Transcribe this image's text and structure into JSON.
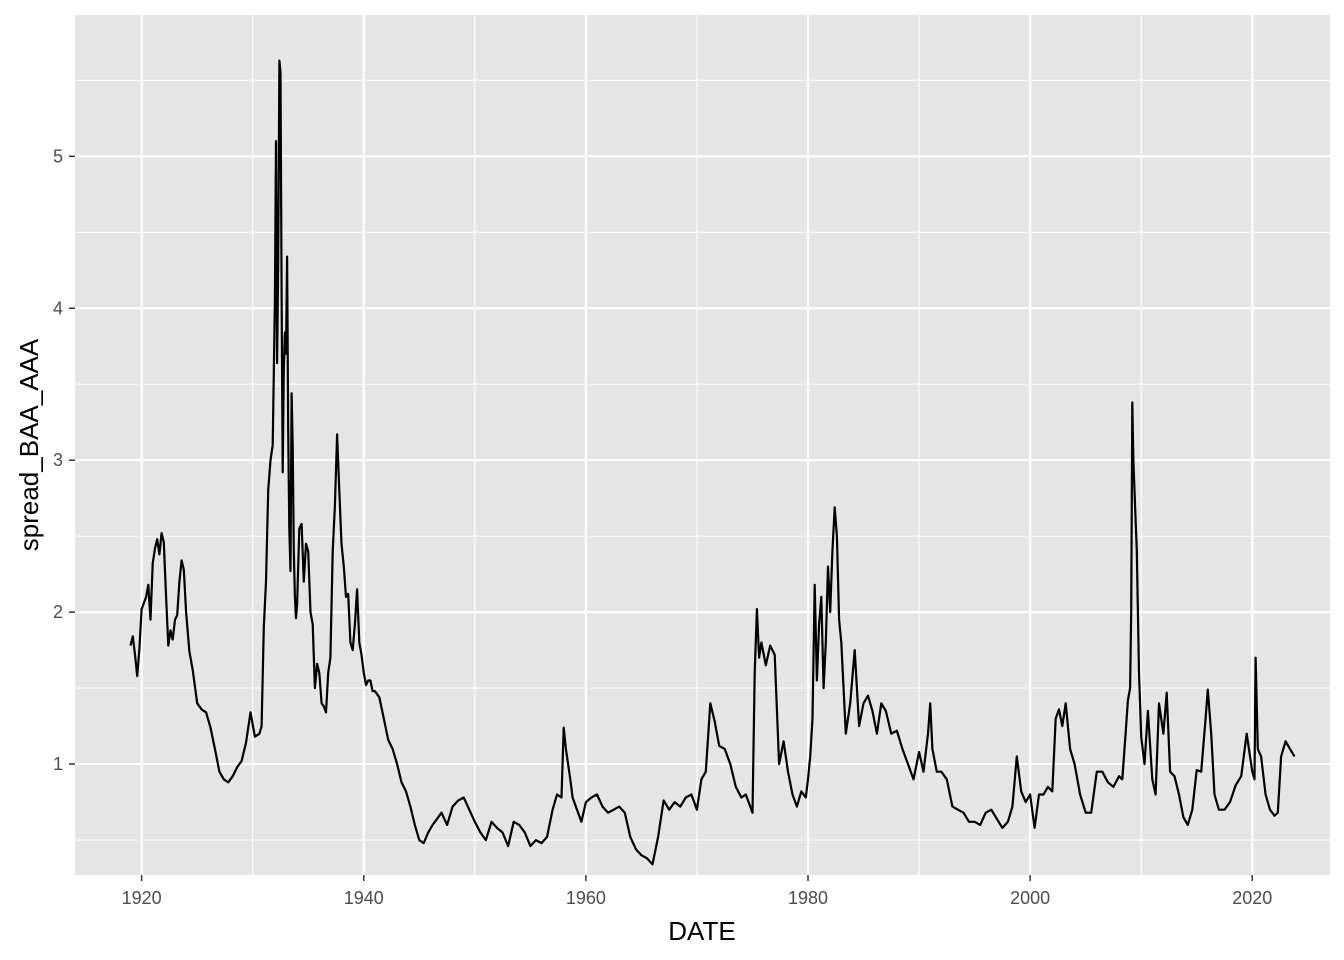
{
  "chart_data": {
    "type": "line",
    "title": "",
    "xlabel": "DATE",
    "ylabel": "spread_BAA_AAA",
    "xlim": [
      1914,
      2027
    ],
    "ylim": [
      0.27,
      5.93
    ],
    "x_ticks": [
      1920,
      1940,
      1960,
      1980,
      2000,
      2020
    ],
    "y_ticks": [
      1,
      2,
      3,
      4,
      5
    ],
    "grid": true,
    "legend": "none",
    "colors": {
      "panel": "#e5e5e5",
      "grid": "#ffffff",
      "line": "#000000",
      "tick_text": "#4d4d4d"
    },
    "series": [
      {
        "x": [
          1919.0,
          1919.2,
          1919.4,
          1919.6,
          1919.8,
          1920.0,
          1920.2,
          1920.4,
          1920.6,
          1920.8,
          1921.0,
          1921.2,
          1921.4,
          1921.6,
          1921.8,
          1922.0,
          1922.2,
          1922.4,
          1922.6,
          1922.8,
          1923.0,
          1923.2,
          1923.4,
          1923.6,
          1923.8,
          1924.0,
          1924.3,
          1924.6,
          1925.0,
          1925.4,
          1925.8,
          1926.2,
          1926.6,
          1927.0,
          1927.4,
          1927.8,
          1928.2,
          1928.6,
          1929.0,
          1929.4,
          1929.8,
          1930.2,
          1930.6,
          1930.8,
          1931.0,
          1931.2,
          1931.4,
          1931.6,
          1931.8,
          1932.0,
          1932.1,
          1932.2,
          1932.3,
          1932.4,
          1932.5,
          1932.6,
          1932.7,
          1932.8,
          1932.9,
          1933.0,
          1933.1,
          1933.2,
          1933.3,
          1933.4,
          1933.5,
          1933.6,
          1933.7,
          1933.8,
          1933.9,
          1934.0,
          1934.2,
          1934.4,
          1934.6,
          1934.8,
          1935.0,
          1935.2,
          1935.4,
          1935.6,
          1935.8,
          1936.0,
          1936.2,
          1936.4,
          1936.6,
          1936.8,
          1937.0,
          1937.2,
          1937.4,
          1937.6,
          1937.8,
          1938.0,
          1938.2,
          1938.4,
          1938.6,
          1938.8,
          1939.0,
          1939.2,
          1939.4,
          1939.6,
          1939.8,
          1940.0,
          1940.2,
          1940.4,
          1940.6,
          1940.8,
          1941.0,
          1941.4,
          1941.8,
          1942.2,
          1942.6,
          1943.0,
          1943.4,
          1943.8,
          1944.2,
          1944.6,
          1945.0,
          1945.4,
          1945.8,
          1946.2,
          1946.6,
          1947.0,
          1947.5,
          1948.0,
          1948.5,
          1949.0,
          1949.5,
          1950.0,
          1950.5,
          1951.0,
          1951.5,
          1952.0,
          1952.5,
          1953.0,
          1953.5,
          1954.0,
          1954.5,
          1955.0,
          1955.5,
          1956.0,
          1956.5,
          1957.0,
          1957.4,
          1957.8,
          1958.0,
          1958.2,
          1958.4,
          1958.6,
          1958.8,
          1959.2,
          1959.6,
          1960.0,
          1960.5,
          1961.0,
          1961.5,
          1962.0,
          1962.5,
          1963.0,
          1963.5,
          1964.0,
          1964.5,
          1965.0,
          1965.5,
          1966.0,
          1966.5,
          1967.0,
          1967.5,
          1968.0,
          1968.5,
          1969.0,
          1969.5,
          1970.0,
          1970.4,
          1970.8,
          1971.2,
          1971.6,
          1972.0,
          1972.5,
          1973.0,
          1973.5,
          1974.0,
          1974.4,
          1974.8,
          1975.0,
          1975.2,
          1975.4,
          1975.6,
          1975.8,
          1976.2,
          1976.6,
          1977.0,
          1977.4,
          1977.8,
          1978.2,
          1978.6,
          1979.0,
          1979.4,
          1979.8,
          1980.0,
          1980.2,
          1980.4,
          1980.6,
          1980.8,
          1981.0,
          1981.2,
          1981.4,
          1981.6,
          1981.8,
          1982.0,
          1982.2,
          1982.4,
          1982.6,
          1982.8,
          1983.0,
          1983.4,
          1983.8,
          1984.2,
          1984.6,
          1985.0,
          1985.4,
          1985.8,
          1986.2,
          1986.6,
          1987.0,
          1987.5,
          1988.0,
          1988.5,
          1989.0,
          1989.5,
          1990.0,
          1990.4,
          1990.8,
          1991.0,
          1991.2,
          1991.6,
          1992.0,
          1992.5,
          1993.0,
          1993.5,
          1994.0,
          1994.5,
          1995.0,
          1995.5,
          1996.0,
          1996.5,
          1997.0,
          1997.5,
          1998.0,
          1998.4,
          1998.8,
          1999.2,
          1999.6,
          2000.0,
          2000.4,
          2000.8,
          2001.2,
          2001.6,
          2002.0,
          2002.3,
          2002.6,
          2002.9,
          2003.2,
          2003.6,
          2004.0,
          2004.5,
          2005.0,
          2005.5,
          2006.0,
          2006.5,
          2007.0,
          2007.5,
          2008.0,
          2008.3,
          2008.6,
          2008.8,
          2009.0,
          2009.1,
          2009.2,
          2009.3,
          2009.4,
          2009.6,
          2009.8,
          2010.0,
          2010.3,
          2010.6,
          2011.0,
          2011.3,
          2011.6,
          2012.0,
          2012.3,
          2012.6,
          2013.0,
          2013.4,
          2013.8,
          2014.2,
          2014.6,
          2015.0,
          2015.4,
          2015.8,
          2016.0,
          2016.3,
          2016.6,
          2017.0,
          2017.5,
          2018.0,
          2018.5,
          2019.0,
          2019.5,
          2020.0,
          2020.2,
          2020.3,
          2020.5,
          2020.8,
          2021.2,
          2021.6,
          2022.0,
          2022.3,
          2022.6,
          2023.0,
          2023.4,
          2023.8
        ],
        "y": [
          1.78,
          1.84,
          1.72,
          1.58,
          1.76,
          2.02,
          2.06,
          2.1,
          2.18,
          1.95,
          2.32,
          2.42,
          2.48,
          2.38,
          2.52,
          2.46,
          2.1,
          1.78,
          1.88,
          1.82,
          1.95,
          1.98,
          2.2,
          2.34,
          2.28,
          2.0,
          1.74,
          1.62,
          1.4,
          1.36,
          1.34,
          1.24,
          1.1,
          0.95,
          0.9,
          0.88,
          0.92,
          0.98,
          1.02,
          1.14,
          1.34,
          1.18,
          1.2,
          1.25,
          1.9,
          2.2,
          2.8,
          3.0,
          3.1,
          4.05,
          5.1,
          3.64,
          4.3,
          5.63,
          5.55,
          4.1,
          2.92,
          3.6,
          3.84,
          3.7,
          4.34,
          3.2,
          2.55,
          2.27,
          3.44,
          3.1,
          2.4,
          2.1,
          1.96,
          2.05,
          2.55,
          2.58,
          2.2,
          2.45,
          2.4,
          2.0,
          1.92,
          1.5,
          1.66,
          1.6,
          1.4,
          1.38,
          1.34,
          1.6,
          1.7,
          2.4,
          2.7,
          3.17,
          2.8,
          2.45,
          2.3,
          2.1,
          2.12,
          1.8,
          1.75,
          1.92,
          2.15,
          1.8,
          1.72,
          1.6,
          1.52,
          1.55,
          1.55,
          1.48,
          1.48,
          1.44,
          1.3,
          1.16,
          1.1,
          1.0,
          0.88,
          0.82,
          0.72,
          0.6,
          0.5,
          0.48,
          0.55,
          0.6,
          0.64,
          0.68,
          0.6,
          0.72,
          0.76,
          0.78,
          0.7,
          0.62,
          0.55,
          0.5,
          0.62,
          0.58,
          0.55,
          0.46,
          0.62,
          0.6,
          0.55,
          0.46,
          0.5,
          0.48,
          0.52,
          0.7,
          0.8,
          0.78,
          1.24,
          1.1,
          1.0,
          0.9,
          0.78,
          0.7,
          0.62,
          0.75,
          0.78,
          0.8,
          0.72,
          0.68,
          0.7,
          0.72,
          0.68,
          0.52,
          0.44,
          0.4,
          0.38,
          0.34,
          0.52,
          0.76,
          0.7,
          0.75,
          0.72,
          0.78,
          0.8,
          0.7,
          0.9,
          0.95,
          1.4,
          1.28,
          1.12,
          1.1,
          1.0,
          0.85,
          0.78,
          0.8,
          0.72,
          0.68,
          1.6,
          2.02,
          1.7,
          1.8,
          1.65,
          1.78,
          1.72,
          1.0,
          1.15,
          0.95,
          0.8,
          0.72,
          0.82,
          0.78,
          0.9,
          1.05,
          1.3,
          2.18,
          1.55,
          1.92,
          2.1,
          1.5,
          1.8,
          2.3,
          2.0,
          2.4,
          2.69,
          2.5,
          1.95,
          1.8,
          1.2,
          1.4,
          1.75,
          1.25,
          1.4,
          1.45,
          1.35,
          1.2,
          1.4,
          1.35,
          1.2,
          1.22,
          1.1,
          1.0,
          0.9,
          1.08,
          0.95,
          1.2,
          1.4,
          1.1,
          0.95,
          0.95,
          0.9,
          0.72,
          0.7,
          0.68,
          0.62,
          0.62,
          0.6,
          0.68,
          0.7,
          0.64,
          0.58,
          0.62,
          0.72,
          1.05,
          0.82,
          0.75,
          0.8,
          0.58,
          0.8,
          0.8,
          0.85,
          0.82,
          1.3,
          1.36,
          1.25,
          1.4,
          1.1,
          1.0,
          0.8,
          0.68,
          0.68,
          0.95,
          0.95,
          0.88,
          0.85,
          0.92,
          0.9,
          1.2,
          1.42,
          1.5,
          2.0,
          3.38,
          3.0,
          2.8,
          2.4,
          1.6,
          1.18,
          1.0,
          1.35,
          0.9,
          0.8,
          1.4,
          1.2,
          1.47,
          0.95,
          0.92,
          0.8,
          0.65,
          0.6,
          0.7,
          0.96,
          0.95,
          1.3,
          1.49,
          1.2,
          0.8,
          0.7,
          0.7,
          0.75,
          0.86,
          0.92,
          1.2,
          0.95,
          0.9,
          1.7,
          1.1,
          1.05,
          0.8,
          0.7,
          0.66,
          0.68,
          1.05,
          1.15,
          1.1,
          1.05
        ]
      }
    ]
  }
}
